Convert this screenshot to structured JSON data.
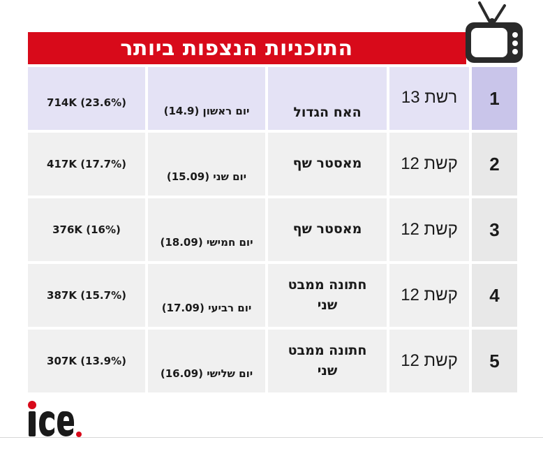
{
  "header": {
    "title": "התוכניות הנצפות ביותר"
  },
  "colors": {
    "title_bar": "#d80a1a",
    "row_first": "#e4e2f5",
    "rank_first": "#c9c5ea",
    "row_other": "#f0f0f0",
    "rank_other": "#e8e8e8"
  },
  "icons": {
    "tv": "tv-icon",
    "logo": "ice-logo"
  },
  "logo_text": "ice.",
  "rows": [
    {
      "rank": "1",
      "channel": "רשת 13",
      "show": "האח הגדול",
      "day": "יום ראשון (14.9)",
      "viewers": "714K (23.6%)"
    },
    {
      "rank": "2",
      "channel": "קשת 12",
      "show": "מאסטר שף",
      "day": "יום שני (15.09)",
      "viewers": "417K (17.7%)"
    },
    {
      "rank": "3",
      "channel": "קשת 12",
      "show": "מאסטר שף",
      "day": "יום חמישי (18.09)",
      "viewers": "376K (16%)"
    },
    {
      "rank": "4",
      "channel": "קשת 12",
      "show": "חתונה ממבט שני",
      "day": "יום רביעי (17.09)",
      "viewers": "387K (15.7%)"
    },
    {
      "rank": "5",
      "channel": "קשת 12",
      "show": "חתונה ממבט שני",
      "day": "יום שלישי (16.09)",
      "viewers": "307K (13.9%)"
    }
  ]
}
